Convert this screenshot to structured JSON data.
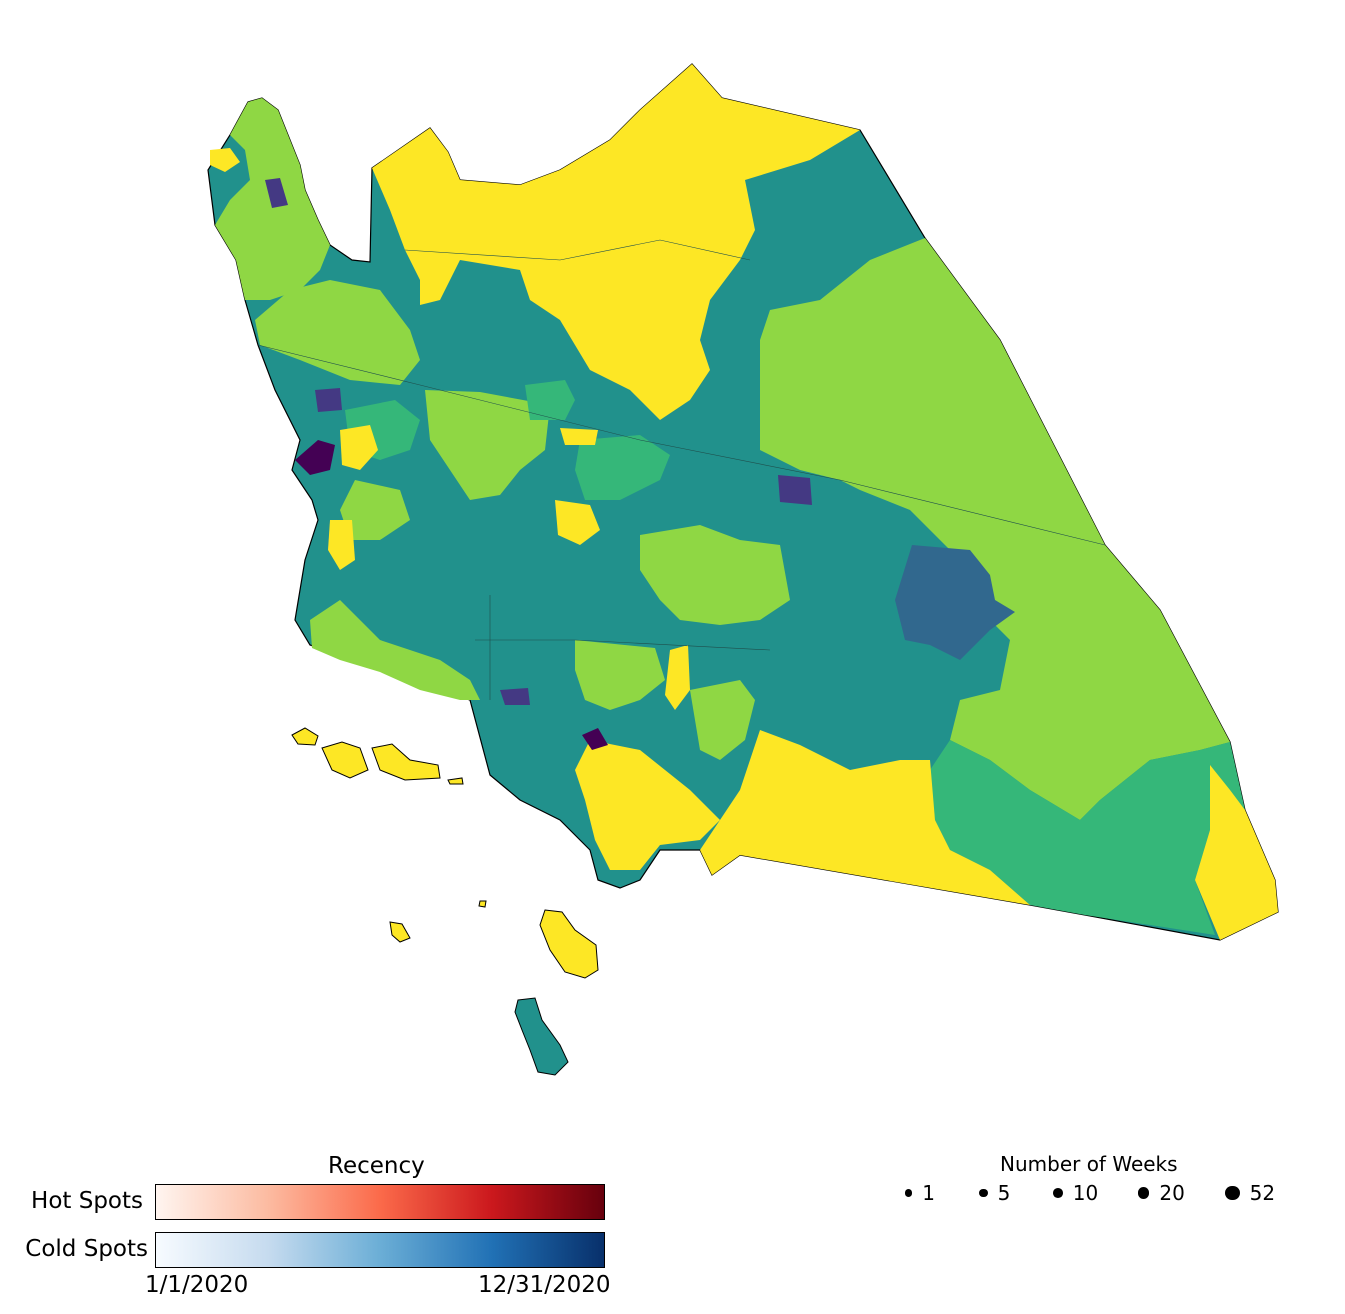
{
  "colors": {
    "yellow": "#fde725",
    "lightgreen": "#8fd744",
    "green": "#35b779",
    "teal": "#21918c",
    "blue": "#31688e",
    "indigo": "#443983",
    "purple": "#440154",
    "outline": "#000000"
  },
  "recency_legend": {
    "title": "Recency",
    "hot_label": "Hot Spots",
    "cold_label": "Cold Spots",
    "start_label": "1/1/2020",
    "end_label": "12/31/2020",
    "hot_gradient": [
      "#fff5f0",
      "#fcbba1",
      "#fb6a4a",
      "#cb181d",
      "#67000d"
    ],
    "cold_gradient": [
      "#f7fbff",
      "#c6dbef",
      "#6baed6",
      "#2171b5",
      "#08306b"
    ]
  },
  "weeks_legend": {
    "title": "Number of Weeks",
    "items": [
      {
        "label": "1",
        "value": 1
      },
      {
        "label": "5",
        "value": 5
      },
      {
        "label": "10",
        "value": 10
      },
      {
        "label": "20",
        "value": 20
      },
      {
        "label": "52",
        "value": 52
      }
    ]
  }
}
